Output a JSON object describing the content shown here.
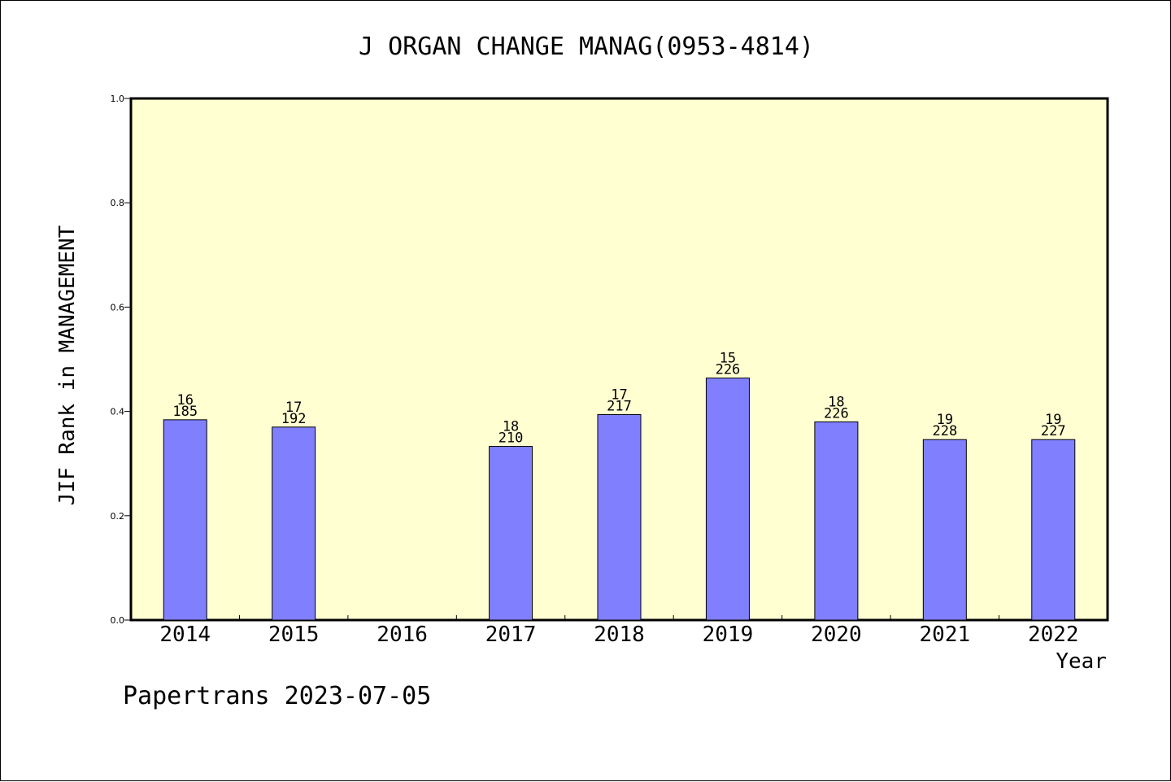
{
  "chart_data": {
    "type": "bar",
    "title": "J ORGAN CHANGE MANAG(0953-4814)",
    "xlabel": "Year",
    "ylabel": "JIF Rank in MANAGEMENT",
    "footer": "Papertrans 2023-07-05",
    "ylim": [
      0,
      1.0
    ],
    "yticks": [
      "0.0",
      "0.2",
      "0.4",
      "0.6",
      "0.8",
      "1.0"
    ],
    "categories": [
      "2014",
      "2015",
      "2016",
      "2017",
      "2018",
      "2019",
      "2020",
      "2021",
      "2022"
    ],
    "values": [
      0.384,
      0.37,
      null,
      0.333,
      0.394,
      0.464,
      0.38,
      0.346,
      0.346
    ],
    "rank_labels": [
      "16",
      "17",
      "",
      "18",
      "17",
      "15",
      "18",
      "19",
      "19"
    ],
    "total_labels": [
      "185",
      "192",
      "",
      "210",
      "217",
      "226",
      "226",
      "228",
      "227"
    ],
    "grid": false,
    "colors": {
      "plot_background": "#ffffd2",
      "bar_fill": "#8080ff",
      "bar_stroke": "#000000",
      "axis": "#000000"
    }
  }
}
